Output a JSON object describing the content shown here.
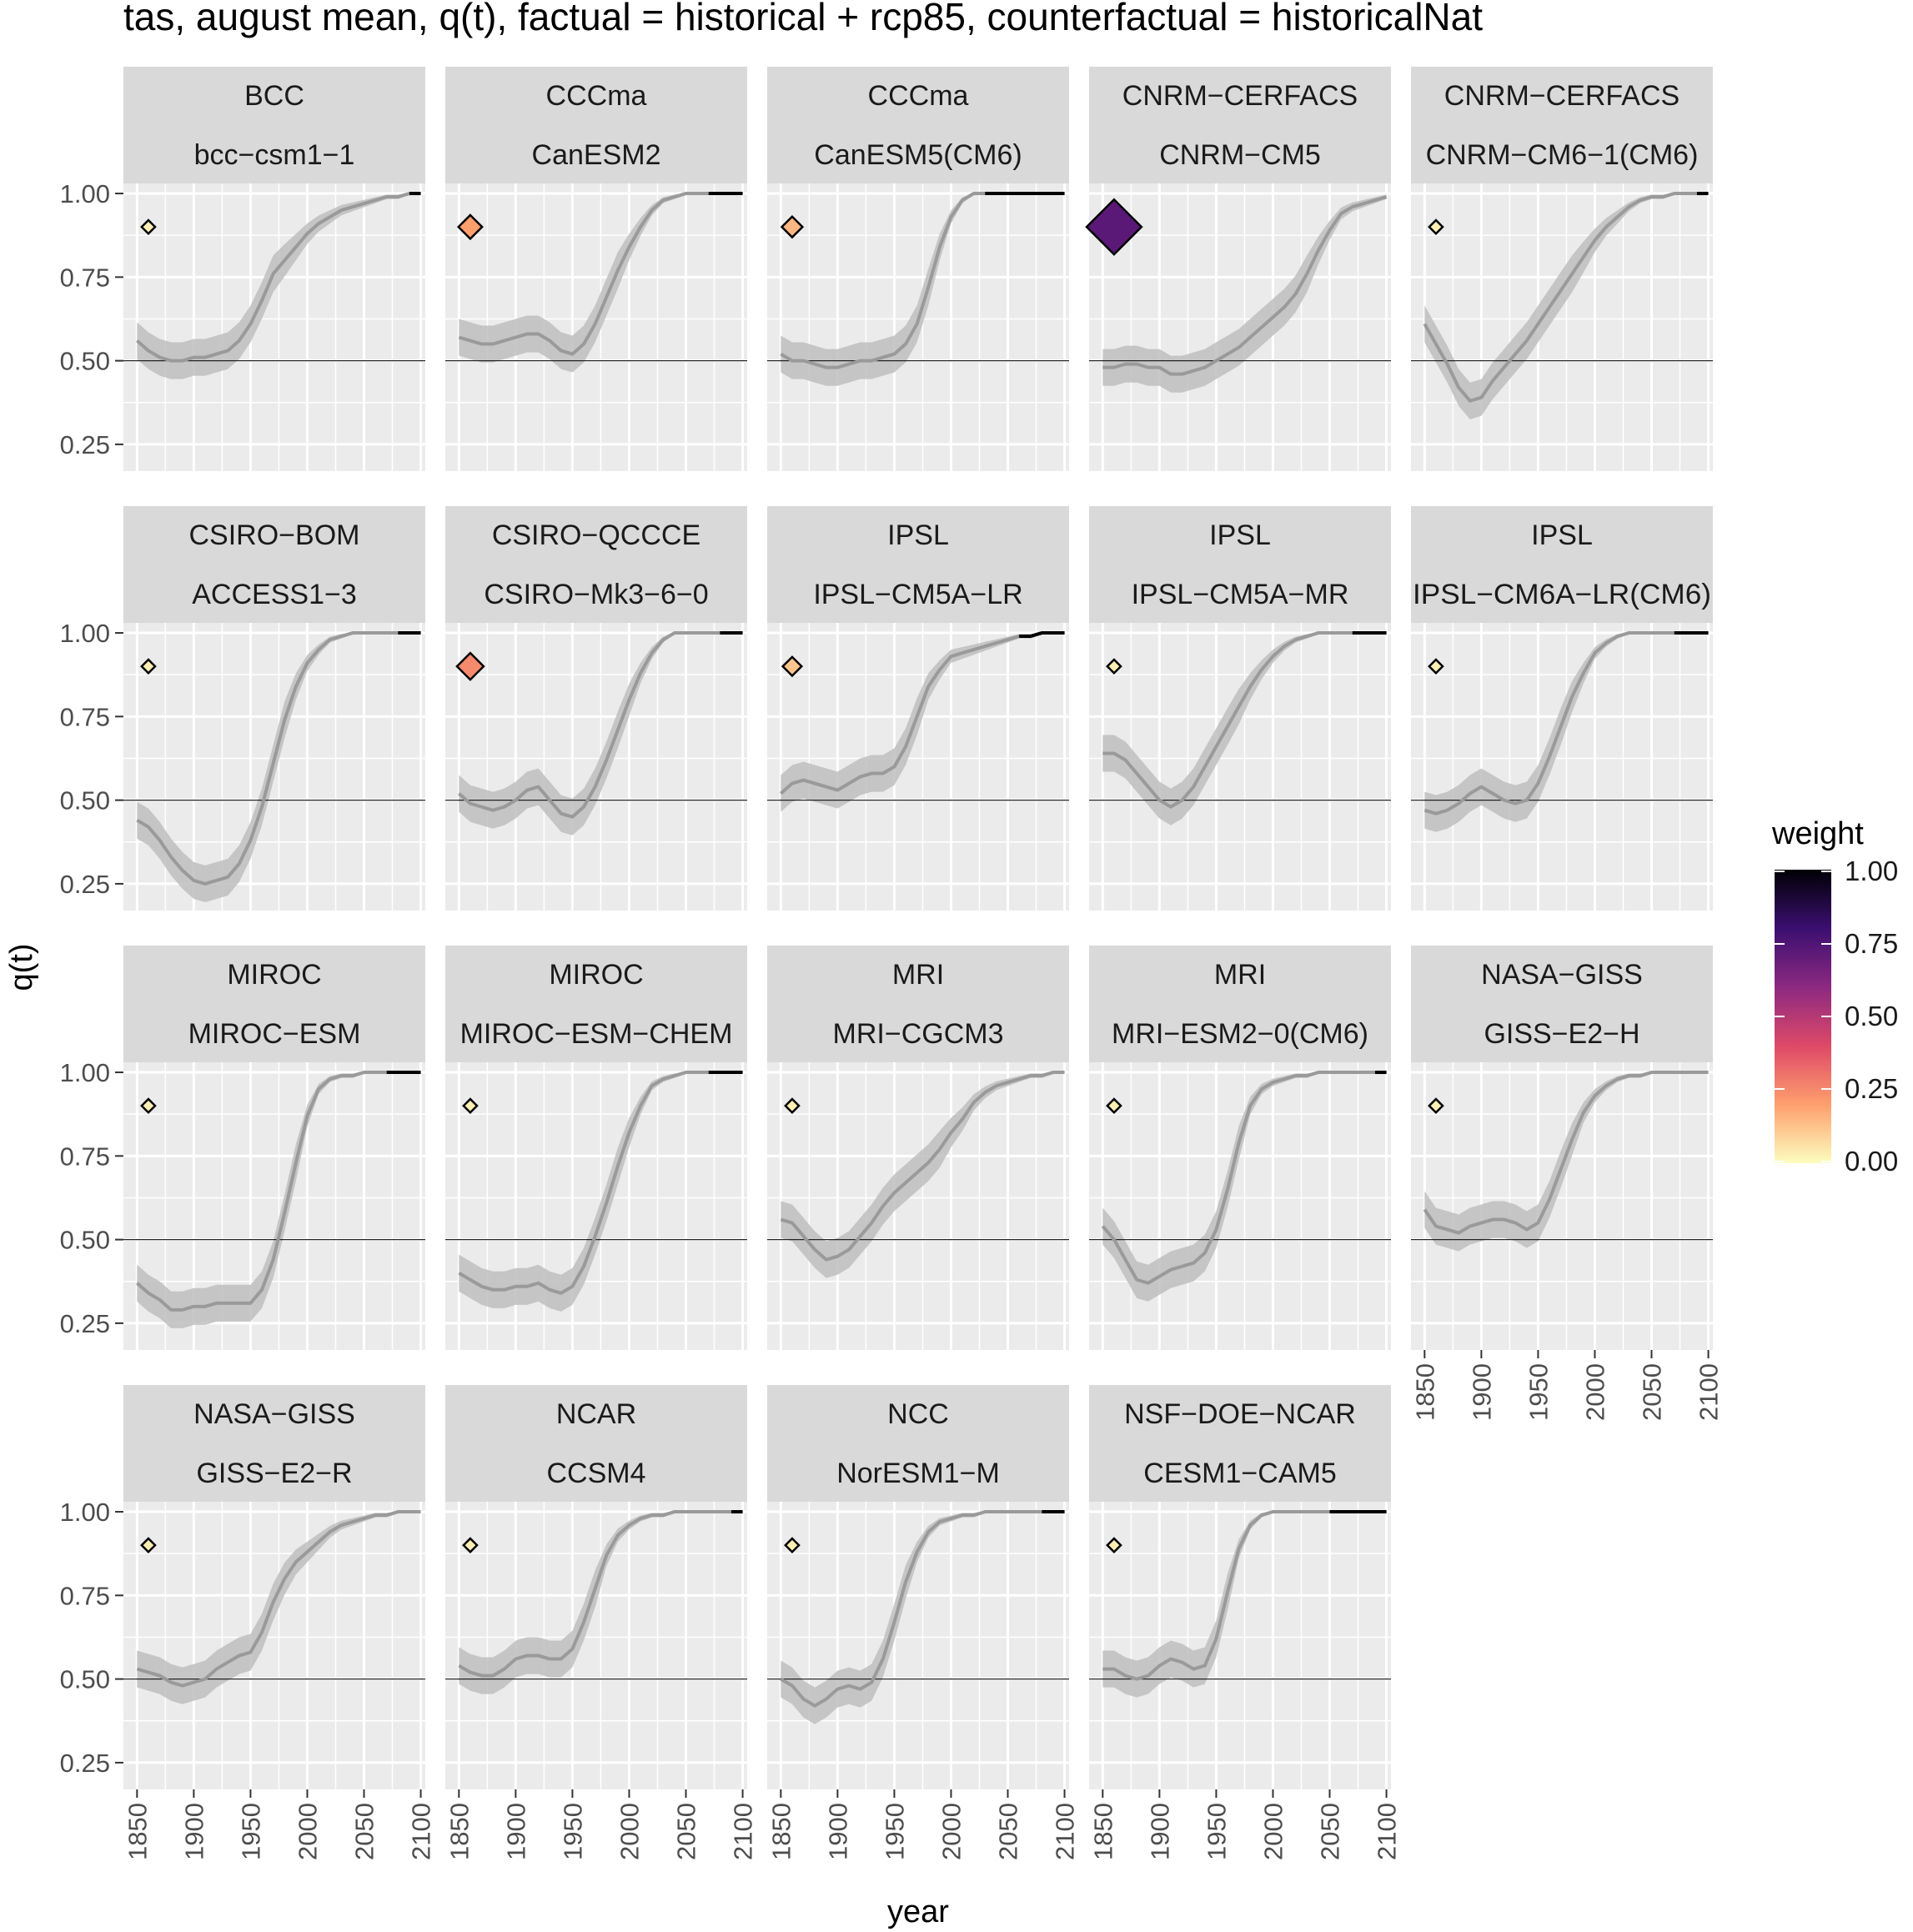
{
  "title": "tas, august mean, q(t), factual = historical + rcp85, counterfactual = historicalNat",
  "xlabel": "year",
  "ylabel": "q(t)",
  "legend": {
    "title": "weight",
    "position": "right",
    "ticks": [
      "1.00",
      "0.75",
      "0.50",
      "0.25",
      "0.00"
    ],
    "colors": [
      "#fcfdbf",
      "#fe9f6d",
      "#de4968",
      "#8c2981",
      "#3b0f70",
      "#000004"
    ]
  },
  "chart_data": {
    "type": "line",
    "facet_layout": {
      "columns": 5,
      "rows": 4
    },
    "x_ticks": [
      "1850",
      "1900",
      "1950",
      "2000",
      "2050",
      "2100"
    ],
    "y_ticks": [
      "0.25",
      "0.50",
      "0.75",
      "1.00"
    ],
    "xlim": [
      1838,
      2104
    ],
    "ylim": [
      0.17,
      1.03
    ],
    "reference_line_y": 0.5,
    "grid": true,
    "band_color": "#bebebe",
    "line_color": "#9a9a9a",
    "future_line_color": "#000000",
    "weight_marker": {
      "x": 1860,
      "y": 0.9
    },
    "years": [
      1850,
      1860,
      1870,
      1880,
      1890,
      1900,
      1910,
      1920,
      1930,
      1940,
      1950,
      1960,
      1970,
      1980,
      1990,
      2000,
      2010,
      2020,
      2030,
      2040,
      2050,
      2060,
      2070,
      2080,
      2090,
      2100
    ],
    "panels": [
      {
        "institute": "BCC",
        "model": "bcc−csm1−1",
        "weight": 0.03,
        "dark_from": 2090,
        "band": 0.055,
        "q": [
          0.56,
          0.53,
          0.51,
          0.5,
          0.5,
          0.51,
          0.51,
          0.52,
          0.53,
          0.56,
          0.61,
          0.68,
          0.76,
          0.8,
          0.84,
          0.88,
          0.91,
          0.93,
          0.95,
          0.96,
          0.97,
          0.98,
          0.99,
          0.99,
          1.0,
          1.0
        ]
      },
      {
        "institute": "CCCma",
        "model": "CanESM2",
        "weight": 0.2,
        "dark_from": 2070,
        "band": 0.055,
        "q": [
          0.57,
          0.56,
          0.55,
          0.55,
          0.56,
          0.57,
          0.58,
          0.58,
          0.56,
          0.53,
          0.52,
          0.55,
          0.61,
          0.69,
          0.77,
          0.84,
          0.9,
          0.95,
          0.98,
          0.99,
          1.0,
          1.0,
          1.0,
          1.0,
          1.0,
          1.0
        ]
      },
      {
        "institute": "CCCma",
        "model": "CanESM5(CM6)",
        "weight": 0.15,
        "dark_from": 2030,
        "band": 0.055,
        "q": [
          0.52,
          0.5,
          0.5,
          0.49,
          0.48,
          0.48,
          0.49,
          0.5,
          0.5,
          0.51,
          0.52,
          0.55,
          0.61,
          0.72,
          0.84,
          0.93,
          0.98,
          1.0,
          1.0,
          1.0,
          1.0,
          1.0,
          1.0,
          1.0,
          1.0,
          1.0
        ]
      },
      {
        "institute": "CNRM−CERFACS",
        "model": "CNRM−CM5",
        "weight": 0.72,
        "dark_from": null,
        "band": 0.055,
        "q": [
          0.48,
          0.48,
          0.49,
          0.49,
          0.48,
          0.48,
          0.46,
          0.46,
          0.47,
          0.48,
          0.5,
          0.52,
          0.54,
          0.57,
          0.6,
          0.63,
          0.66,
          0.7,
          0.76,
          0.83,
          0.89,
          0.94,
          0.96,
          0.97,
          0.98,
          0.99
        ]
      },
      {
        "institute": "CNRM−CERFACS",
        "model": "CNRM−CM6−1(CM6)",
        "weight": 0.03,
        "dark_from": 2090,
        "band": 0.055,
        "q": [
          0.61,
          0.55,
          0.49,
          0.42,
          0.38,
          0.39,
          0.44,
          0.48,
          0.52,
          0.56,
          0.61,
          0.66,
          0.71,
          0.76,
          0.81,
          0.86,
          0.9,
          0.93,
          0.96,
          0.98,
          0.99,
          0.99,
          1.0,
          1.0,
          1.0,
          1.0
        ]
      },
      {
        "institute": "CSIRO−BOM",
        "model": "ACCESS1−3",
        "weight": 0.03,
        "dark_from": 2080,
        "band": 0.055,
        "q": [
          0.44,
          0.42,
          0.38,
          0.33,
          0.29,
          0.26,
          0.25,
          0.26,
          0.27,
          0.31,
          0.38,
          0.48,
          0.61,
          0.74,
          0.84,
          0.91,
          0.95,
          0.98,
          0.99,
          1.0,
          1.0,
          1.0,
          1.0,
          1.0,
          1.0,
          1.0
        ]
      },
      {
        "institute": "CSIRO−QCCCE",
        "model": "CSIRO−Mk3−6−0",
        "weight": 0.25,
        "dark_from": 2080,
        "band": 0.055,
        "q": [
          0.52,
          0.49,
          0.48,
          0.47,
          0.48,
          0.5,
          0.53,
          0.54,
          0.5,
          0.46,
          0.45,
          0.48,
          0.54,
          0.62,
          0.71,
          0.8,
          0.88,
          0.94,
          0.98,
          1.0,
          1.0,
          1.0,
          1.0,
          1.0,
          1.0,
          1.0
        ]
      },
      {
        "institute": "IPSL",
        "model": "IPSL−CM5A−LR",
        "weight": 0.12,
        "dark_from": 2060,
        "band": 0.055,
        "q": [
          0.52,
          0.55,
          0.56,
          0.55,
          0.54,
          0.53,
          0.55,
          0.57,
          0.58,
          0.58,
          0.6,
          0.66,
          0.75,
          0.84,
          0.89,
          0.93,
          0.94,
          0.95,
          0.96,
          0.97,
          0.98,
          0.99,
          0.99,
          1.0,
          1.0,
          1.0
        ]
      },
      {
        "institute": "IPSL",
        "model": "IPSL−CM5A−MR",
        "weight": 0.03,
        "dark_from": 2070,
        "band": 0.055,
        "q": [
          0.64,
          0.64,
          0.62,
          0.58,
          0.54,
          0.5,
          0.48,
          0.5,
          0.54,
          0.6,
          0.66,
          0.72,
          0.78,
          0.84,
          0.89,
          0.93,
          0.96,
          0.98,
          0.99,
          1.0,
          1.0,
          1.0,
          1.0,
          1.0,
          1.0,
          1.0
        ]
      },
      {
        "institute": "IPSL",
        "model": "IPSL−CM6A−LR(CM6)",
        "weight": 0.03,
        "dark_from": 2070,
        "band": 0.055,
        "q": [
          0.47,
          0.46,
          0.47,
          0.49,
          0.52,
          0.54,
          0.52,
          0.5,
          0.49,
          0.5,
          0.55,
          0.63,
          0.72,
          0.81,
          0.88,
          0.94,
          0.97,
          0.99,
          1.0,
          1.0,
          1.0,
          1.0,
          1.0,
          1.0,
          1.0,
          1.0
        ]
      },
      {
        "institute": "MIROC",
        "model": "MIROC−ESM",
        "weight": 0.03,
        "dark_from": 2070,
        "band": 0.055,
        "q": [
          0.37,
          0.34,
          0.32,
          0.29,
          0.29,
          0.3,
          0.3,
          0.31,
          0.31,
          0.31,
          0.31,
          0.35,
          0.44,
          0.58,
          0.73,
          0.87,
          0.95,
          0.98,
          0.99,
          0.99,
          1.0,
          1.0,
          1.0,
          1.0,
          1.0,
          1.0
        ]
      },
      {
        "institute": "MIROC",
        "model": "MIROC−ESM−CHEM",
        "weight": 0.03,
        "dark_from": 2070,
        "band": 0.055,
        "q": [
          0.4,
          0.38,
          0.36,
          0.35,
          0.35,
          0.36,
          0.36,
          0.37,
          0.35,
          0.34,
          0.36,
          0.42,
          0.51,
          0.61,
          0.72,
          0.82,
          0.9,
          0.96,
          0.98,
          0.99,
          1.0,
          1.0,
          1.0,
          1.0,
          1.0,
          1.0
        ]
      },
      {
        "institute": "MRI",
        "model": "MRI−CGCM3",
        "weight": 0.03,
        "dark_from": null,
        "band": 0.055,
        "q": [
          0.56,
          0.55,
          0.51,
          0.47,
          0.44,
          0.45,
          0.47,
          0.51,
          0.55,
          0.6,
          0.64,
          0.67,
          0.7,
          0.73,
          0.77,
          0.82,
          0.86,
          0.91,
          0.94,
          0.96,
          0.97,
          0.98,
          0.99,
          0.99,
          1.0,
          1.0
        ]
      },
      {
        "institute": "MRI",
        "model": "MRI−ESM2−0(CM6)",
        "weight": 0.03,
        "dark_from": 2090,
        "band": 0.055,
        "q": [
          0.54,
          0.5,
          0.44,
          0.38,
          0.37,
          0.39,
          0.41,
          0.42,
          0.43,
          0.46,
          0.53,
          0.65,
          0.79,
          0.9,
          0.95,
          0.97,
          0.98,
          0.99,
          0.99,
          1.0,
          1.0,
          1.0,
          1.0,
          1.0,
          1.0,
          1.0
        ]
      },
      {
        "institute": "NASA−GISS",
        "model": "GISS−E2−H",
        "weight": 0.03,
        "dark_from": null,
        "band": 0.055,
        "q": [
          0.59,
          0.54,
          0.53,
          0.52,
          0.54,
          0.55,
          0.56,
          0.56,
          0.55,
          0.53,
          0.55,
          0.62,
          0.71,
          0.8,
          0.88,
          0.93,
          0.96,
          0.98,
          0.99,
          0.99,
          1.0,
          1.0,
          1.0,
          1.0,
          1.0,
          1.0
        ]
      },
      {
        "institute": "NASA−GISS",
        "model": "GISS−E2−R",
        "weight": 0.03,
        "dark_from": null,
        "band": 0.055,
        "q": [
          0.53,
          0.52,
          0.51,
          0.49,
          0.48,
          0.49,
          0.5,
          0.53,
          0.55,
          0.57,
          0.58,
          0.64,
          0.73,
          0.8,
          0.85,
          0.88,
          0.91,
          0.94,
          0.96,
          0.97,
          0.98,
          0.99,
          0.99,
          1.0,
          1.0,
          1.0
        ]
      },
      {
        "institute": "NCAR",
        "model": "CCSM4",
        "weight": 0.03,
        "dark_from": 2090,
        "band": 0.055,
        "q": [
          0.54,
          0.52,
          0.51,
          0.51,
          0.53,
          0.56,
          0.57,
          0.57,
          0.56,
          0.56,
          0.59,
          0.67,
          0.77,
          0.87,
          0.93,
          0.96,
          0.98,
          0.99,
          0.99,
          1.0,
          1.0,
          1.0,
          1.0,
          1.0,
          1.0,
          1.0
        ]
      },
      {
        "institute": "NCC",
        "model": "NorESM1−M",
        "weight": 0.03,
        "dark_from": 2080,
        "band": 0.055,
        "q": [
          0.5,
          0.48,
          0.44,
          0.42,
          0.44,
          0.47,
          0.48,
          0.47,
          0.49,
          0.56,
          0.67,
          0.79,
          0.88,
          0.94,
          0.97,
          0.98,
          0.99,
          0.99,
          1.0,
          1.0,
          1.0,
          1.0,
          1.0,
          1.0,
          1.0,
          1.0
        ]
      },
      {
        "institute": "NSF−DOE−NCAR",
        "model": "CESM1−CAM5",
        "weight": 0.03,
        "dark_from": 2050,
        "band": 0.055,
        "q": [
          0.53,
          0.53,
          0.51,
          0.5,
          0.51,
          0.54,
          0.56,
          0.55,
          0.53,
          0.54,
          0.62,
          0.76,
          0.89,
          0.96,
          0.99,
          1.0,
          1.0,
          1.0,
          1.0,
          1.0,
          1.0,
          1.0,
          1.0,
          1.0,
          1.0,
          1.0
        ]
      }
    ]
  }
}
